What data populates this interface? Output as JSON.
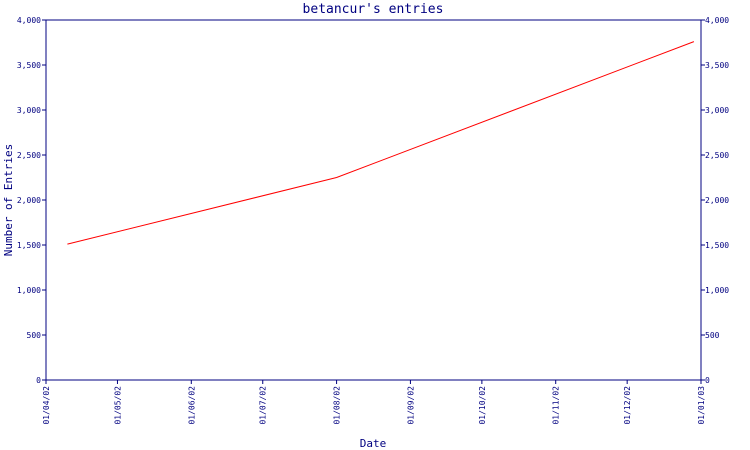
{
  "chart_data": {
    "type": "line",
    "title": "betancur's entries",
    "xlabel": "Date",
    "ylabel": "Number of Entries",
    "x_ticks": [
      "01/04/02",
      "01/05/02",
      "01/06/02",
      "01/07/02",
      "01/08/02",
      "01/09/02",
      "01/10/02",
      "01/11/02",
      "01/12/02",
      "01/01/03"
    ],
    "y_ticks": [
      "0",
      "500",
      "1,000",
      "1,500",
      "2,000",
      "2,500",
      "3,000",
      "3,500",
      "4,000"
    ],
    "ylim": [
      0,
      4000
    ],
    "xlim": [
      "2002-04-01",
      "2003-01-01"
    ],
    "grid": false,
    "series": [
      {
        "x": [
          "2002-04-10",
          "2002-08-01",
          "2002-12-29"
        ],
        "y": [
          1510,
          2250,
          3760
        ],
        "color": "#ff0000"
      }
    ],
    "axis_color": "#000080"
  }
}
